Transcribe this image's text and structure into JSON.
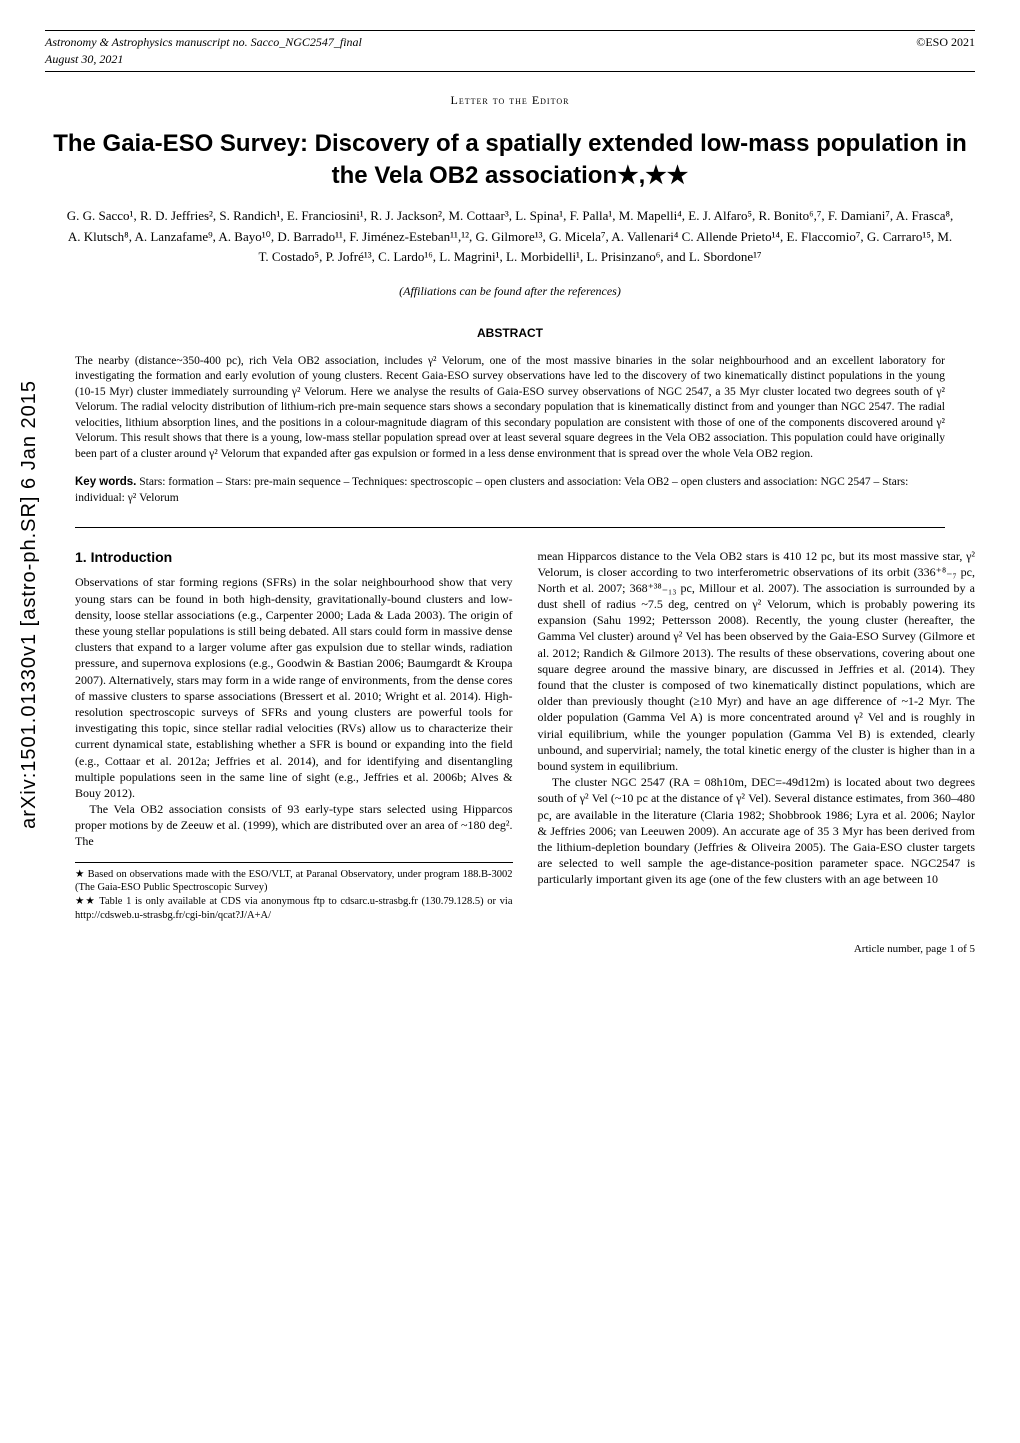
{
  "header": {
    "journal": "Astronomy & Astrophysics",
    "manuscript": "manuscript no. Sacco_NGC2547_final",
    "date": "August 30, 2021",
    "copyright": "©ESO 2021"
  },
  "arxiv": "arXiv:1501.01330v1  [astro-ph.SR]  6 Jan 2015",
  "letter_label": "Letter to the Editor",
  "title": "The Gaia-ESO Survey: Discovery of a spatially extended low-mass population in the Vela OB2 association★,★★",
  "authors": "G. G. Sacco¹, R. D. Jeffries², S. Randich¹, E. Franciosini¹, R. J. Jackson², M. Cottaar³, L. Spina¹, F. Palla¹, M. Mapelli⁴, E. J. Alfaro⁵, R. Bonito⁶,⁷, F. Damiani⁷, A. Frasca⁸, A. Klutsch⁸, A. Lanzafame⁹, A. Bayo¹⁰, D. Barrado¹¹, F. Jiménez-Esteban¹¹,¹², G. Gilmore¹³, G. Micela⁷, A. Vallenari⁴ C. Allende Prieto¹⁴, E. Flaccomio⁷, G. Carraro¹⁵, M. T. Costado⁵, P. Jofré¹³, C. Lardo¹⁶, L. Magrini¹, L. Morbidelli¹, L. Prisinzano⁶, and L. Sbordone¹⁷",
  "affiliations_note": "(Affiliations can be found after the references)",
  "abstract": {
    "header": "ABSTRACT",
    "text": "The nearby (distance~350-400 pc), rich Vela OB2 association, includes γ² Velorum, one of the most massive binaries in the solar neighbourhood and an excellent laboratory for investigating the formation and early evolution of young clusters. Recent Gaia-ESO survey observations have led to the discovery of two kinematically distinct populations in the young (10-15 Myr) cluster immediately surrounding γ² Velorum. Here we analyse the results of Gaia-ESO survey observations of NGC 2547, a 35 Myr cluster located two degrees south of γ² Velorum. The radial velocity distribution of lithium-rich pre-main sequence stars shows a secondary population that is kinematically distinct from and younger than NGC 2547. The radial velocities, lithium absorption lines, and the positions in a colour-magnitude diagram of this secondary population are consistent with those of one of the components discovered around γ² Velorum. This result shows that there is a young, low-mass stellar population spread over at least several square degrees in the Vela OB2 association. This population could have originally been part of a cluster around γ² Velorum that expanded after gas expulsion or formed in a less dense environment that is spread over the whole Vela OB2 region."
  },
  "keywords": {
    "label": "Key words.",
    "text": "Stars: formation – Stars: pre-main sequence – Techniques: spectroscopic – open clusters and association: Vela OB2 – open clusters and association: NGC 2547 – Stars: individual: γ² Velorum"
  },
  "section1": {
    "title": "1. Introduction",
    "para1": "Observations of star forming regions (SFRs) in the solar neighbourhood show that very young stars can be found in both high-density, gravitationally-bound clusters and low-density, loose stellar associations (e.g., Carpenter 2000; Lada & Lada 2003). The origin of these young stellar populations is still being debated. All stars could form in massive dense clusters that expand to a larger volume after gas expulsion due to stellar winds, radiation pressure, and supernova explosions (e.g., Goodwin & Bastian 2006; Baumgardt & Kroupa 2007). Alternatively, stars may form in a wide range of environments, from the dense cores of massive clusters to sparse associations (Bressert et al. 2010; Wright et al. 2014). High-resolution spectroscopic surveys of SFRs and young clusters are powerful tools for investigating this topic, since stellar radial velocities (RVs) allow us to characterize their current dynamical state, establishing whether a SFR is bound or expanding into the field (e.g., Cottaar et al. 2012a; Jeffries et al. 2014), and for identifying and disentangling multiple populations seen in the same line of sight (e.g., Jeffries et al. 2006b; Alves & Bouy 2012).",
    "para2": "The Vela OB2 association consists of 93 early-type stars selected using Hipparcos proper motions by de Zeeuw et al. (1999), which are distributed over an area of ~180 deg². The",
    "para3": "mean Hipparcos distance to the Vela OB2 stars is 410 12 pc, but its most massive star, γ² Velorum, is closer according to two interferometric observations of its orbit (336⁺⁸₋₇ pc, North et al. 2007; 368⁺³⁸₋₁₃ pc, Millour et al. 2007). The association is surrounded by a dust shell of radius ~7.5 deg, centred on γ² Velorum, which is probably powering its expansion (Sahu 1992; Pettersson 2008). Recently, the young cluster (hereafter, the Gamma Vel cluster) around γ² Vel has been observed by the Gaia-ESO Survey (Gilmore et al. 2012; Randich & Gilmore 2013). The results of these observations, covering about one square degree around the massive binary, are discussed in Jeffries et al. (2014). They found that the cluster is composed of two kinematically distinct populations, which are older than previously thought (≥10 Myr) and have an age difference of ~1-2 Myr. The older population (Gamma Vel A) is more concentrated around γ² Vel and is roughly in virial equilibrium, while the younger population (Gamma Vel B) is extended, clearly unbound, and supervirial; namely, the total kinetic energy of the cluster is higher than in a bound system in equilibrium.",
    "para4": "The cluster NGC 2547 (RA = 08h10m, DEC=-49d12m) is located about two degrees south of γ² Vel (~10 pc at the distance of γ² Vel). Several distance estimates, from 360–480 pc, are available in the literature (Claria 1982; Shobbrook 1986; Lyra et al. 2006; Naylor & Jeffries 2006; van Leeuwen 2009). An accurate age of 35 3 Myr has been derived from the lithium-depletion boundary (Jeffries & Oliveira 2005). The Gaia-ESO cluster targets are selected to well sample the age-distance-position parameter space. NGC2547 is particularly important given its age (one of the few clusters with an age between 10"
  },
  "footnotes": {
    "fn1": "★ Based on observations made with the ESO/VLT, at Paranal Observatory, under program 188.B-3002 (The Gaia-ESO Public Spectroscopic Survey)",
    "fn2": "★★ Table 1 is only available at CDS via anonymous ftp to cdsarc.u-strasbg.fr (130.79.128.5) or via http://cdsweb.u-strasbg.fr/cgi-bin/qcat?J/A+A/"
  },
  "page_footer": "Article number, page 1 of 5"
}
